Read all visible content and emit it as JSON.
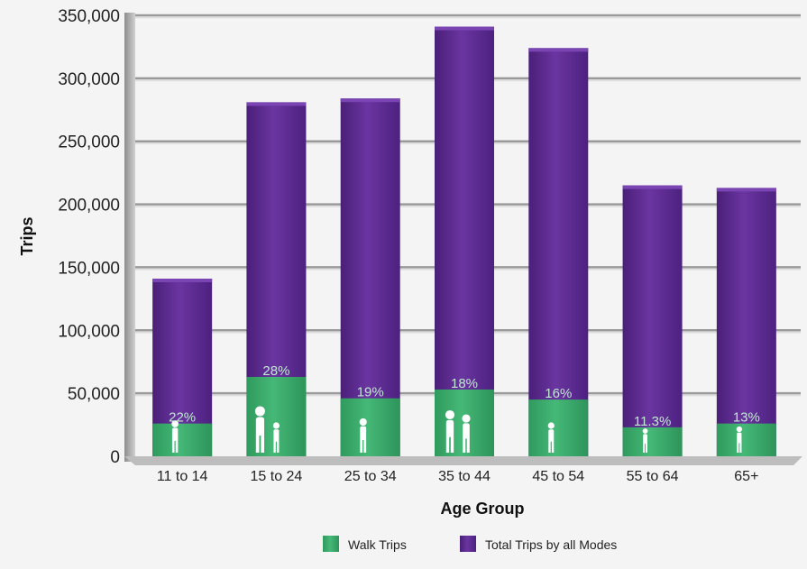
{
  "chart_data": {
    "type": "bar",
    "title": "",
    "xlabel": "Age Group",
    "ylabel": "Trips",
    "ylim": [
      0,
      350000
    ],
    "yticks": [
      0,
      50000,
      100000,
      150000,
      200000,
      250000,
      300000,
      350000
    ],
    "ytick_labels": [
      "0",
      "50,000",
      "100,000",
      "150,000",
      "200,000",
      "250,000",
      "300,000",
      "350,000"
    ],
    "categories": [
      "11 to 14",
      "15 to 24",
      "25 to 34",
      "35 to 44",
      "45 to 54",
      "55 to 64",
      "65+"
    ],
    "series": [
      {
        "name": "Total Trips by all Modes",
        "color": "#5b2a8c",
        "values": [
          141000,
          281000,
          284000,
          341000,
          324000,
          215000,
          213000
        ]
      },
      {
        "name": "Walk Trips",
        "color": "#3aa86b",
        "values": [
          26000,
          63000,
          46000,
          53000,
          45000,
          23000,
          26000
        ]
      }
    ],
    "walk_share_labels": [
      "22%",
      "28%",
      "19%",
      "18%",
      "16%",
      "11.3%",
      "13%"
    ],
    "legend_position": "bottom",
    "grid": true
  },
  "icons": [
    "walker-icon",
    "family-icon",
    "walker-icon",
    "couple-icon",
    "walker-icon",
    "walker-icon",
    "elderly-walker-icon"
  ]
}
